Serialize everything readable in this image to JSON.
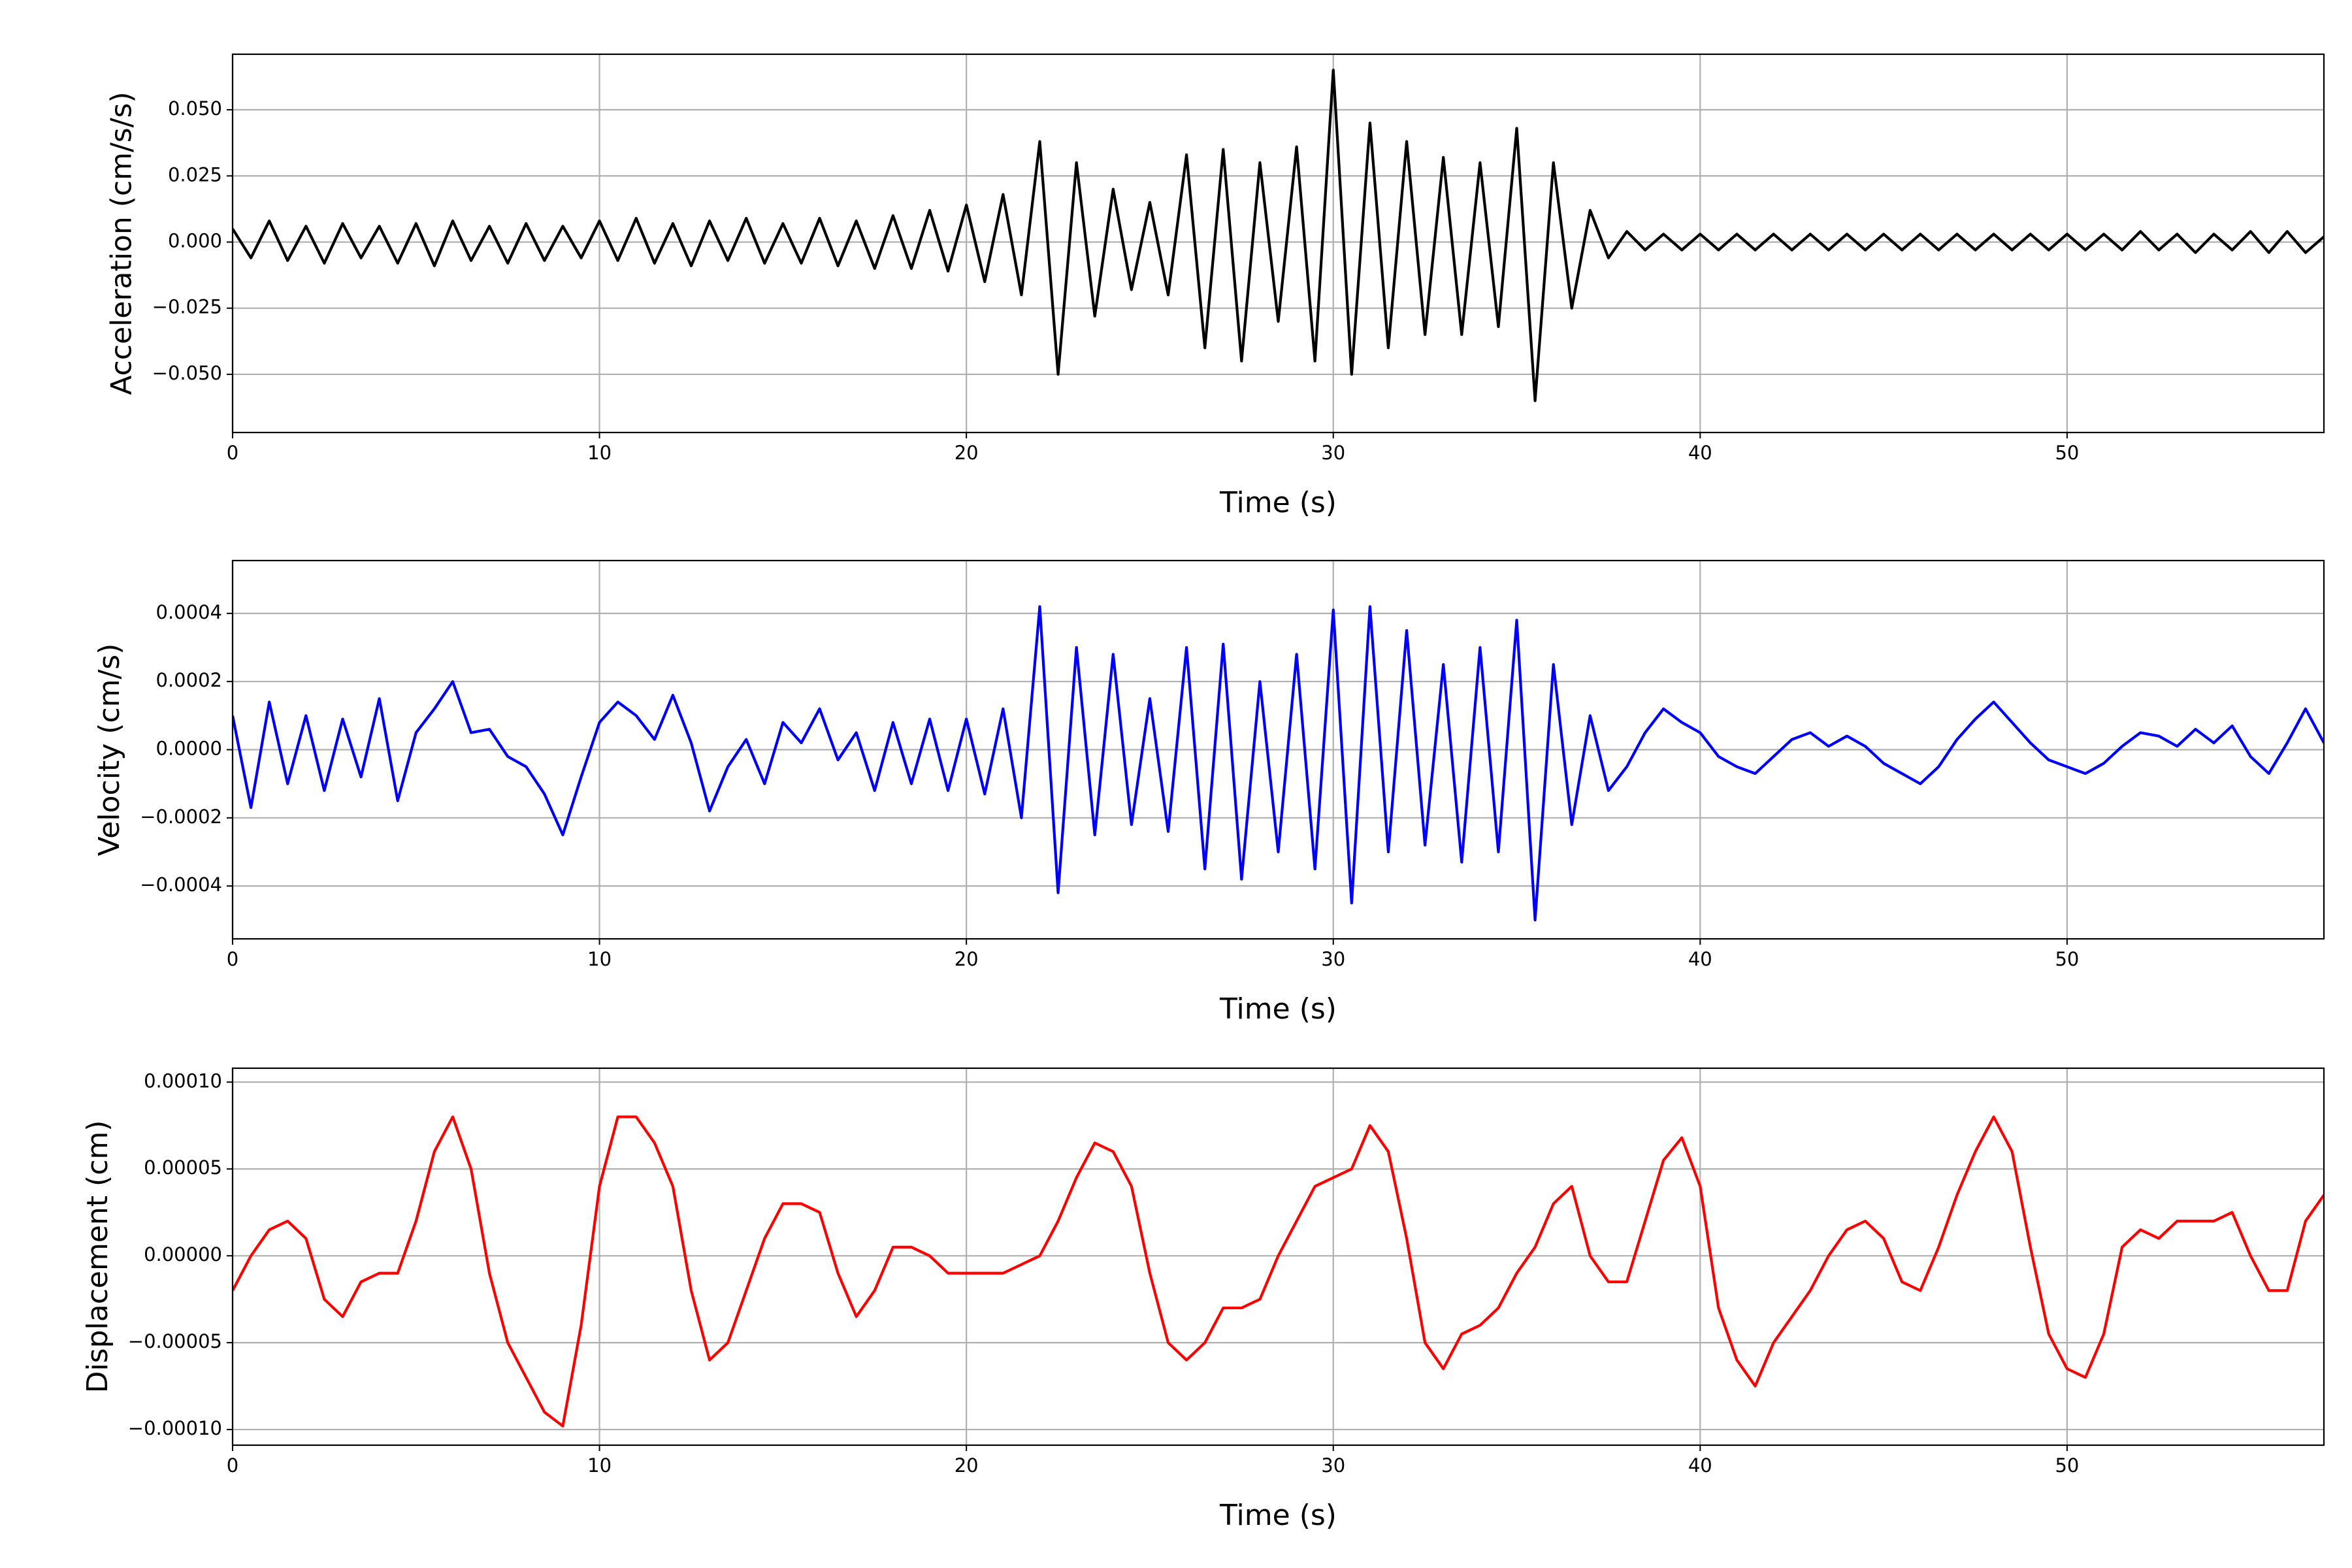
{
  "chart_data": [
    {
      "type": "line",
      "xlabel": "Time (s)",
      "ylabel": "Acceleration (cm/s/s)",
      "color": "#000000",
      "grid": true,
      "xlim": [
        0,
        57
      ],
      "xticks": [
        0,
        10,
        20,
        30,
        40,
        50
      ],
      "ylim": [
        -0.072,
        0.071
      ],
      "yticks": [
        {
          "value": -0.05,
          "label": "−0.050"
        },
        {
          "value": -0.025,
          "label": "−0.025"
        },
        {
          "value": 0,
          "label": "0.000"
        },
        {
          "value": 0.025,
          "label": "0.025"
        },
        {
          "value": 0.05,
          "label": "0.050"
        }
      ],
      "x": [
        0,
        0.5,
        1,
        1.5,
        2,
        2.5,
        3,
        3.5,
        4,
        4.5,
        5,
        5.5,
        6,
        6.5,
        7,
        7.5,
        8,
        8.5,
        9,
        9.5,
        10,
        10.5,
        11,
        11.5,
        12,
        12.5,
        13,
        13.5,
        14,
        14.5,
        15,
        15.5,
        16,
        16.5,
        17,
        17.5,
        18,
        18.5,
        19,
        19.5,
        20,
        20.5,
        21,
        21.5,
        22,
        22.5,
        23,
        23.5,
        24,
        24.5,
        25,
        25.5,
        26,
        26.5,
        27,
        27.5,
        28,
        28.5,
        29,
        29.5,
        30,
        30.5,
        31,
        31.5,
        32,
        32.5,
        33,
        33.5,
        34,
        34.5,
        35,
        35.5,
        36,
        36.5,
        37,
        37.5,
        38,
        38.5,
        39,
        39.5,
        40,
        40.5,
        41,
        41.5,
        42,
        42.5,
        43,
        43.5,
        44,
        44.5,
        45,
        45.5,
        46,
        46.5,
        47,
        47.5,
        48,
        48.5,
        49,
        49.5,
        50,
        50.5,
        51,
        51.5,
        52,
        52.5,
        53,
        53.5,
        54,
        54.5,
        55,
        55.5,
        56,
        56.5,
        57
      ],
      "values": [
        0.005,
        -0.006,
        0.008,
        -0.007,
        0.006,
        -0.008,
        0.007,
        -0.006,
        0.006,
        -0.008,
        0.007,
        -0.009,
        0.008,
        -0.007,
        0.006,
        -0.008,
        0.007,
        -0.007,
        0.006,
        -0.006,
        0.008,
        -0.007,
        0.009,
        -0.008,
        0.007,
        -0.009,
        0.008,
        -0.007,
        0.009,
        -0.008,
        0.007,
        -0.008,
        0.009,
        -0.009,
        0.008,
        -0.01,
        0.01,
        -0.01,
        0.012,
        -0.011,
        0.014,
        -0.015,
        0.018,
        -0.02,
        0.038,
        -0.05,
        0.03,
        -0.028,
        0.02,
        -0.018,
        0.015,
        -0.02,
        0.033,
        -0.04,
        0.035,
        -0.045,
        0.03,
        -0.03,
        0.036,
        -0.045,
        0.065,
        -0.05,
        0.045,
        -0.04,
        0.038,
        -0.035,
        0.032,
        -0.035,
        0.03,
        -0.032,
        0.043,
        -0.06,
        0.03,
        -0.025,
        0.012,
        -0.006,
        0.004,
        -0.003,
        0.003,
        -0.003,
        0.003,
        -0.003,
        0.003,
        -0.003,
        0.003,
        -0.003,
        0.003,
        -0.003,
        0.003,
        -0.003,
        0.003,
        -0.003,
        0.003,
        -0.003,
        0.003,
        -0.003,
        0.003,
        -0.003,
        0.003,
        -0.003,
        0.003,
        -0.003,
        0.003,
        -0.003,
        0.004,
        -0.003,
        0.003,
        -0.004,
        0.003,
        -0.003,
        0.004,
        -0.004,
        0.004,
        -0.004,
        0.002
      ]
    },
    {
      "type": "line",
      "xlabel": "Time (s)",
      "ylabel": "Velocity (cm/s)",
      "color": "#0000ff",
      "grid": true,
      "xlim": [
        0,
        57
      ],
      "xticks": [
        0,
        10,
        20,
        30,
        40,
        50
      ],
      "ylim": [
        -0.000555,
        0.000555
      ],
      "yticks": [
        {
          "value": -0.0004,
          "label": "−0.0004"
        },
        {
          "value": -0.0002,
          "label": "−0.0002"
        },
        {
          "value": 0,
          "label": "0.0000"
        },
        {
          "value": 0.0002,
          "label": "0.0002"
        },
        {
          "value": 0.0004,
          "label": "0.0004"
        }
      ],
      "x": [
        0,
        0.5,
        1,
        1.5,
        2,
        2.5,
        3,
        3.5,
        4,
        4.5,
        5,
        5.5,
        6,
        6.5,
        7,
        7.5,
        8,
        8.5,
        9,
        9.5,
        10,
        10.5,
        11,
        11.5,
        12,
        12.5,
        13,
        13.5,
        14,
        14.5,
        15,
        15.5,
        16,
        16.5,
        17,
        17.5,
        18,
        18.5,
        19,
        19.5,
        20,
        20.5,
        21,
        21.5,
        22,
        22.5,
        23,
        23.5,
        24,
        24.5,
        25,
        25.5,
        26,
        26.5,
        27,
        27.5,
        28,
        28.5,
        29,
        29.5,
        30,
        30.5,
        31,
        31.5,
        32,
        32.5,
        33,
        33.5,
        34,
        34.5,
        35,
        35.5,
        36,
        36.5,
        37,
        37.5,
        38,
        38.5,
        39,
        39.5,
        40,
        40.5,
        41,
        41.5,
        42,
        42.5,
        43,
        43.5,
        44,
        44.5,
        45,
        45.5,
        46,
        46.5,
        47,
        47.5,
        48,
        48.5,
        49,
        49.5,
        50,
        50.5,
        51,
        51.5,
        52,
        52.5,
        53,
        53.5,
        54,
        54.5,
        55,
        55.5,
        56,
        56.5,
        57
      ],
      "values": [
        0.0001,
        -0.00017,
        0.00014,
        -0.0001,
        0.0001,
        -0.00012,
        9e-05,
        -8e-05,
        0.00015,
        -0.00015,
        5e-05,
        0.00012,
        0.0002,
        5e-05,
        6e-05,
        -2e-05,
        -5e-05,
        -0.00013,
        -0.00025,
        -8e-05,
        8e-05,
        0.00014,
        0.0001,
        3e-05,
        0.00016,
        2e-05,
        -0.00018,
        -5e-05,
        3e-05,
        -0.0001,
        8e-05,
        2e-05,
        0.00012,
        -3e-05,
        5e-05,
        -0.00012,
        8e-05,
        -0.0001,
        9e-05,
        -0.00012,
        9e-05,
        -0.00013,
        0.00012,
        -0.0002,
        0.00042,
        -0.00042,
        0.0003,
        -0.00025,
        0.00028,
        -0.00022,
        0.00015,
        -0.00024,
        0.0003,
        -0.00035,
        0.00031,
        -0.00038,
        0.0002,
        -0.0003,
        0.00028,
        -0.00035,
        0.00041,
        -0.00045,
        0.00042,
        -0.0003,
        0.00035,
        -0.00028,
        0.00025,
        -0.00033,
        0.0003,
        -0.0003,
        0.00038,
        -0.0005,
        0.00025,
        -0.00022,
        0.0001,
        -0.00012,
        -5e-05,
        5e-05,
        0.00012,
        8e-05,
        5e-05,
        -2e-05,
        -5e-05,
        -7e-05,
        -2e-05,
        3e-05,
        5e-05,
        1e-05,
        4e-05,
        1e-05,
        -4e-05,
        -7e-05,
        -0.0001,
        -5e-05,
        3e-05,
        9e-05,
        0.00014,
        8e-05,
        2e-05,
        -3e-05,
        -5e-05,
        -7e-05,
        -4e-05,
        1e-05,
        5e-05,
        4e-05,
        1e-05,
        6e-05,
        2e-05,
        7e-05,
        -2e-05,
        -7e-05,
        2e-05,
        0.00012,
        2e-05
      ]
    },
    {
      "type": "line",
      "xlabel": "Time (s)",
      "ylabel": "Displacement (cm)",
      "color": "#ff0000",
      "grid": true,
      "xlim": [
        0,
        57
      ],
      "xticks": [
        0,
        10,
        20,
        30,
        40,
        50
      ],
      "ylim": [
        -0.000109,
        0.000108
      ],
      "yticks": [
        {
          "value": -0.0001,
          "label": "−0.00010"
        },
        {
          "value": -5e-05,
          "label": "−0.00005"
        },
        {
          "value": 0,
          "label": "0.00000"
        },
        {
          "value": 5e-05,
          "label": "0.00005"
        },
        {
          "value": 0.0001,
          "label": "0.00010"
        }
      ],
      "x": [
        0,
        0.5,
        1,
        1.5,
        2,
        2.5,
        3,
        3.5,
        4,
        4.5,
        5,
        5.5,
        6,
        6.5,
        7,
        7.5,
        8,
        8.5,
        9,
        9.5,
        10,
        10.5,
        11,
        11.5,
        12,
        12.5,
        13,
        13.5,
        14,
        14.5,
        15,
        15.5,
        16,
        16.5,
        17,
        17.5,
        18,
        18.5,
        19,
        19.5,
        20,
        20.5,
        21,
        21.5,
        22,
        22.5,
        23,
        23.5,
        24,
        24.5,
        25,
        25.5,
        26,
        26.5,
        27,
        27.5,
        28,
        28.5,
        29,
        29.5,
        30,
        30.5,
        31,
        31.5,
        32,
        32.5,
        33,
        33.5,
        34,
        34.5,
        35,
        35.5,
        36,
        36.5,
        37,
        37.5,
        38,
        38.5,
        39,
        39.5,
        40,
        40.5,
        41,
        41.5,
        42,
        42.5,
        43,
        43.5,
        44,
        44.5,
        45,
        45.5,
        46,
        46.5,
        47,
        47.5,
        48,
        48.5,
        49,
        49.5,
        50,
        50.5,
        51,
        51.5,
        52,
        52.5,
        53,
        53.5,
        54,
        54.5,
        55,
        55.5,
        56,
        56.5,
        57
      ],
      "values": [
        -2e-05,
        0,
        1.5e-05,
        2e-05,
        1e-05,
        -2.5e-05,
        -3.5e-05,
        -1.5e-05,
        -1e-05,
        -1e-05,
        2e-05,
        6e-05,
        8e-05,
        5e-05,
        -1e-05,
        -5e-05,
        -7e-05,
        -9e-05,
        -9.8e-05,
        -4e-05,
        4e-05,
        8e-05,
        8e-05,
        6.5e-05,
        4e-05,
        -2e-05,
        -6e-05,
        -5e-05,
        -2e-05,
        1e-05,
        3e-05,
        3e-05,
        2.5e-05,
        -1e-05,
        -3.5e-05,
        -2e-05,
        5e-06,
        5e-06,
        0,
        -1e-05,
        -1e-05,
        -1e-05,
        -1e-05,
        -5e-06,
        0,
        2e-05,
        4.5e-05,
        6.5e-05,
        6e-05,
        4e-05,
        -1e-05,
        -5e-05,
        -6e-05,
        -5e-05,
        -3e-05,
        -3e-05,
        -2.5e-05,
        0,
        2e-05,
        4e-05,
        4.5e-05,
        5e-05,
        7.5e-05,
        6e-05,
        1e-05,
        -5e-05,
        -6.5e-05,
        -4.5e-05,
        -4e-05,
        -3e-05,
        -1e-05,
        5e-06,
        3e-05,
        4e-05,
        0,
        -1.5e-05,
        -1.5e-05,
        2e-05,
        5.5e-05,
        6.8e-05,
        4e-05,
        -3e-05,
        -6e-05,
        -7.5e-05,
        -5e-05,
        -3.5e-05,
        -2e-05,
        0,
        1.5e-05,
        2e-05,
        1e-05,
        -1.5e-05,
        -2e-05,
        5e-06,
        3.5e-05,
        6e-05,
        8e-05,
        6e-05,
        5e-06,
        -4.5e-05,
        -6.5e-05,
        -7e-05,
        -4.5e-05,
        5e-06,
        1.5e-05,
        1e-05,
        2e-05,
        2e-05,
        2e-05,
        2.5e-05,
        0,
        -2e-05,
        -2e-05,
        2e-05,
        3.5e-05
      ]
    }
  ]
}
